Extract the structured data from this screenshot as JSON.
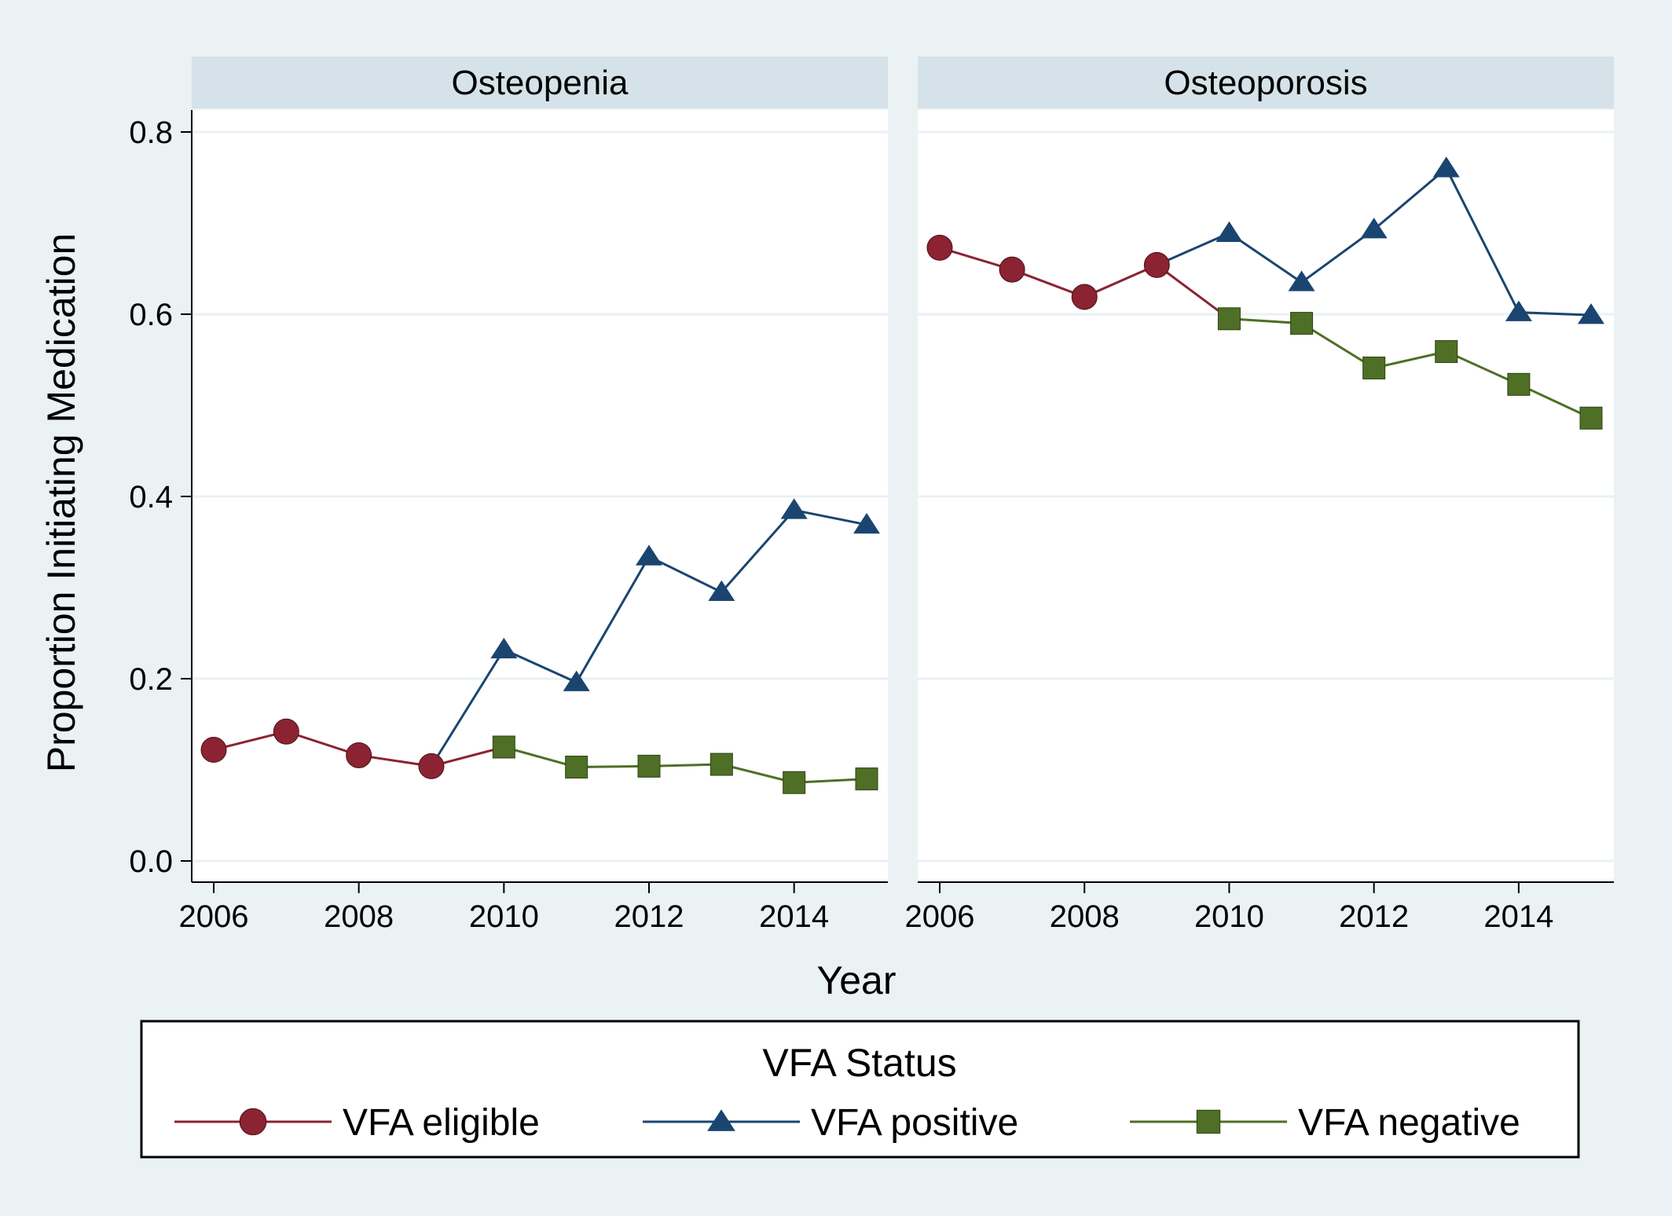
{
  "chart_data": {
    "type": "line",
    "ylabel": "Proportion Initiating Medication",
    "xlabel": "Year",
    "ylim": [
      0,
      0.8
    ],
    "xlim": [
      2006,
      2015
    ],
    "yticks": [
      "0.0",
      "0.2",
      "0.4",
      "0.6",
      "0.8"
    ],
    "xticks": [
      "2006",
      "2008",
      "2010",
      "2012",
      "2014"
    ],
    "grid": true,
    "legend": {
      "title": "VFA Status",
      "position": "bottom",
      "entries": [
        "VFA eligible",
        "VFA positive",
        "VFA negative"
      ]
    },
    "series_styles": [
      {
        "name": "VFA eligible",
        "color": "#8b2332",
        "marker": "circle"
      },
      {
        "name": "VFA positive",
        "color": "#1a4570",
        "marker": "triangle"
      },
      {
        "name": "VFA negative",
        "color": "#4e6f25",
        "marker": "square"
      }
    ],
    "panels": [
      {
        "title": "Osteopenia",
        "series": [
          {
            "name": "VFA eligible",
            "x": [
              2006,
              2007,
              2008,
              2009,
              2010
            ],
            "values": [
              0.122,
              0.142,
              0.116,
              0.104,
              0.125
            ]
          },
          {
            "name": "VFA positive",
            "x": [
              2009,
              2010,
              2011,
              2012,
              2013,
              2014,
              2015
            ],
            "values": [
              0.104,
              0.232,
              0.196,
              0.334,
              0.295,
              0.385,
              0.369
            ]
          },
          {
            "name": "VFA negative",
            "x": [
              2010,
              2011,
              2012,
              2013,
              2014,
              2015
            ],
            "values": [
              0.125,
              0.103,
              0.104,
              0.106,
              0.086,
              0.09
            ]
          }
        ]
      },
      {
        "title": "Osteoporosis",
        "series": [
          {
            "name": "VFA eligible",
            "x": [
              2006,
              2007,
              2008,
              2009,
              2010
            ],
            "values": [
              0.673,
              0.649,
              0.619,
              0.654,
              0.595
            ]
          },
          {
            "name": "VFA positive",
            "x": [
              2009,
              2010,
              2011,
              2012,
              2013,
              2014,
              2015
            ],
            "values": [
              0.654,
              0.689,
              0.635,
              0.693,
              0.76,
              0.602,
              0.599
            ]
          },
          {
            "name": "VFA negative",
            "x": [
              2010,
              2011,
              2012,
              2013,
              2014,
              2015
            ],
            "values": [
              0.595,
              0.59,
              0.541,
              0.559,
              0.523,
              0.486
            ]
          }
        ]
      }
    ]
  }
}
